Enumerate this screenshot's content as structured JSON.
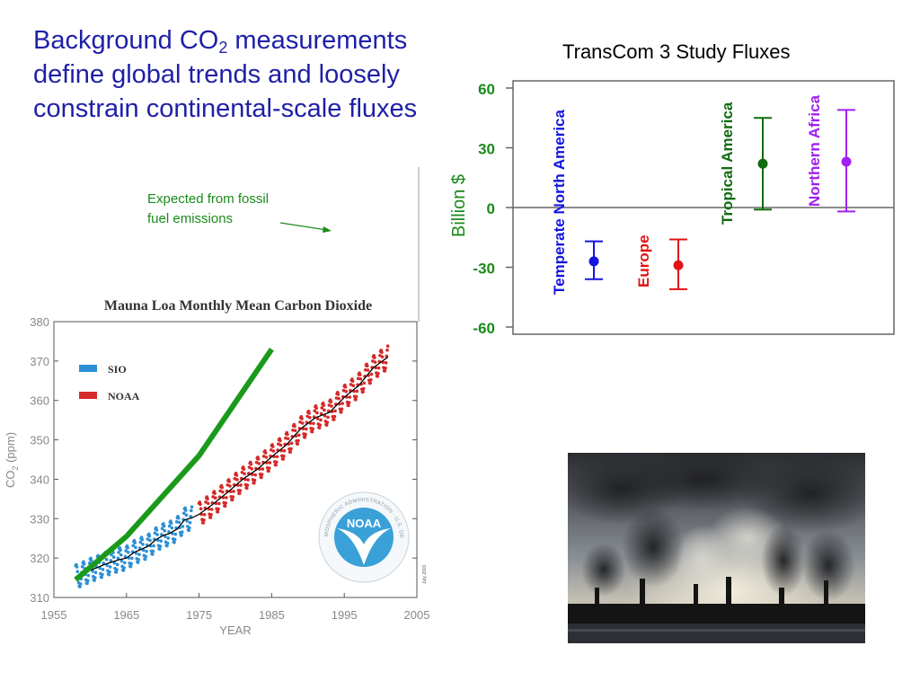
{
  "slide": {
    "title_main": "Background CO",
    "title_sub": "2",
    "title_rest": " measurements define global trends and loosely constrain continental-scale fluxes"
  },
  "annotation": {
    "line1": "Expected from fossil",
    "line2": "fuel emissions"
  },
  "colors": {
    "title": "#1f1fa8",
    "annotation": "#1a8a1a",
    "expected_line": "#1a9a1a",
    "sio": "#2c8fd6",
    "noaa": "#d42a2a",
    "temperate_north_america": "#1414e0",
    "europe": "#e01414",
    "tropical_america": "#0f6b0f",
    "northern_africa": "#a020f0"
  },
  "chart_data": [
    {
      "type": "line",
      "title": "Mauna Loa Monthly Mean Carbon Dioxide",
      "xlabel": "YEAR",
      "ylabel": "CO",
      "ylabel_sub": "2",
      "ylabel_unit": " (ppm)",
      "xlim": [
        1955,
        2005
      ],
      "ylim": [
        310,
        380
      ],
      "xticks": [
        1955,
        1965,
        1975,
        1985,
        1995,
        2005
      ],
      "yticks": [
        310,
        320,
        330,
        340,
        350,
        360,
        370,
        380
      ],
      "legend_position": "top-left",
      "legend": [
        {
          "name": "SIO",
          "color_key": "sio"
        },
        {
          "name": "NOAA",
          "color_key": "noaa"
        }
      ],
      "series": [
        {
          "name": "SIO",
          "x": [
            1958,
            1959,
            1960,
            1961,
            1962,
            1963,
            1964,
            1965,
            1966,
            1967,
            1968,
            1969,
            1970,
            1971,
            1972,
            1973,
            1974
          ],
          "values": [
            315.3,
            316.0,
            316.9,
            317.6,
            318.4,
            319.0,
            319.6,
            320.0,
            321.4,
            322.2,
            323.0,
            324.6,
            325.7,
            326.3,
            327.4,
            329.7,
            330.2
          ]
        },
        {
          "name": "NOAA",
          "x": [
            1975,
            1977,
            1979,
            1981,
            1983,
            1985,
            1987,
            1989,
            1991,
            1993,
            1995,
            1997,
            1999,
            2001
          ],
          "values": [
            331.1,
            333.8,
            336.8,
            340.0,
            342.5,
            345.7,
            348.7,
            352.8,
            355.6,
            357.0,
            360.8,
            363.8,
            368.3,
            371.0
          ]
        }
      ],
      "expected_from_fossil_emissions": {
        "x": [
          1958,
          1965,
          1975,
          1985
        ],
        "values": [
          314.5,
          325.5,
          346.0,
          373.0
        ]
      },
      "logo_text": "NOAA",
      "seal_text": "NATIONAL OCEANIC AND ATMOSPHERIC ADMINISTRATION · U.S. DEPARTMENT OF COMMERCE",
      "note": "July 2001"
    },
    {
      "type": "scatter",
      "title": "TransCom 3 Study Fluxes",
      "ylabel": "Billion $",
      "ylim": [
        -60,
        60
      ],
      "yticks": [
        60,
        30,
        0,
        -30,
        -60
      ],
      "grid": false,
      "categories": [
        "Temperate North America",
        "Europe",
        "Tropical America",
        "Northern Africa"
      ],
      "values": [
        -27,
        -29,
        22,
        23
      ],
      "error_low": [
        -36,
        -41,
        -1,
        -2
      ],
      "error_high": [
        -17,
        -16,
        45,
        49
      ],
      "color_keys": [
        "temperate_north_america",
        "europe",
        "tropical_america",
        "northern_africa"
      ]
    }
  ]
}
